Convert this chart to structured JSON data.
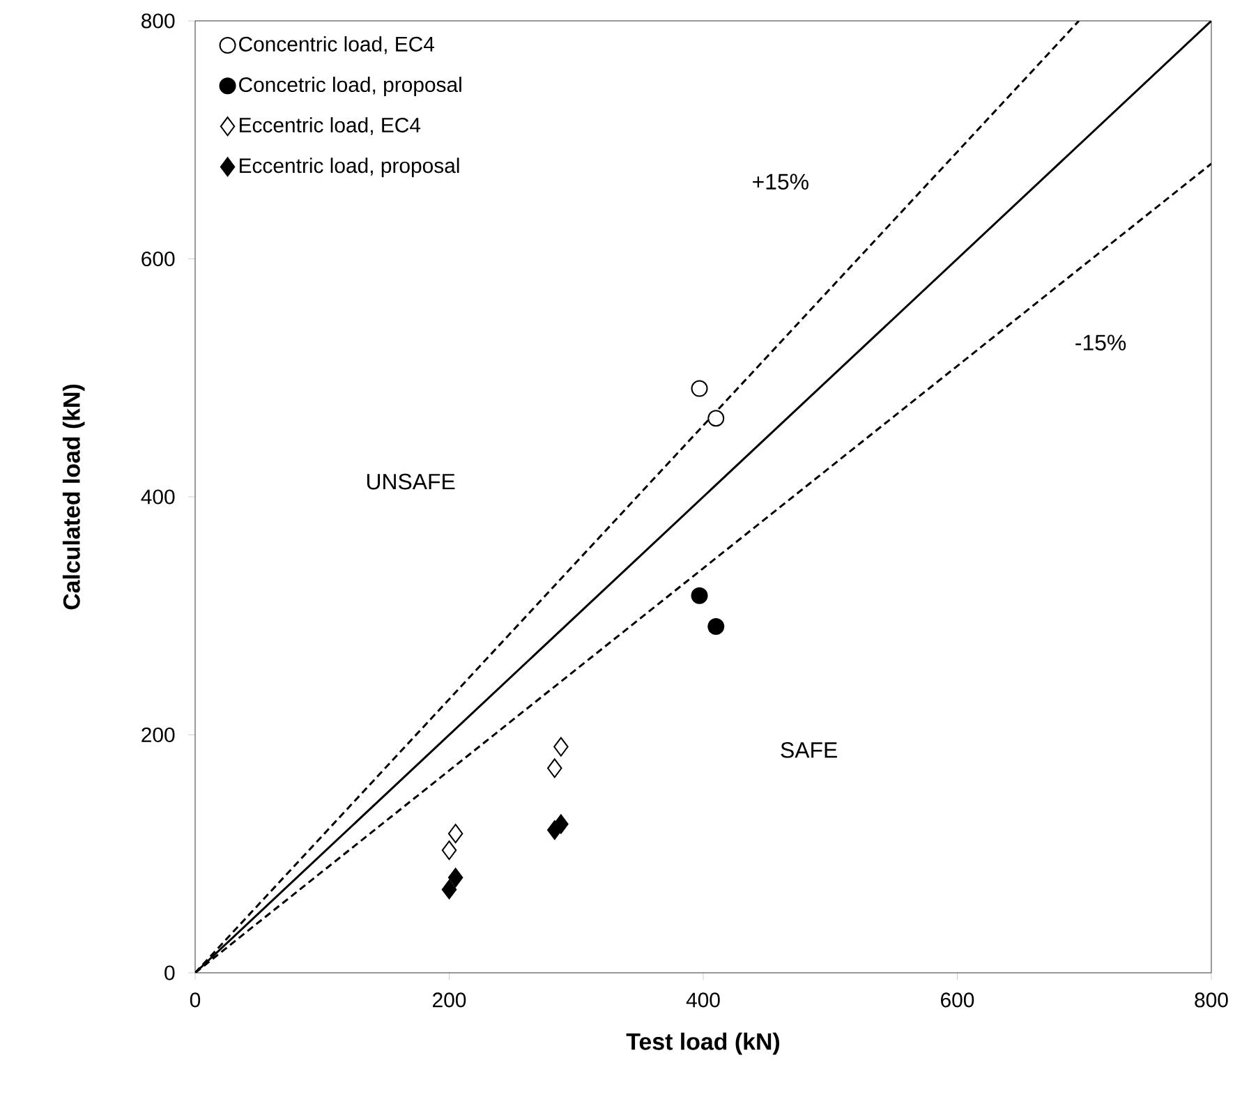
{
  "chart_data": {
    "type": "scatter",
    "xlabel": "Test load (kN)",
    "ylabel": "Calculated load (kN)",
    "xlim": [
      0,
      800
    ],
    "ylim": [
      0,
      800
    ],
    "xticks": [
      0,
      200,
      400,
      600,
      800
    ],
    "yticks": [
      0,
      200,
      400,
      600,
      800
    ],
    "grid": false,
    "legend": "top left",
    "series": [
      {
        "name": "Concentric load, EC4",
        "color": "#ffffff",
        "marker": "circle",
        "x": [
          397,
          410
        ],
        "values": [
          491,
          466
        ]
      },
      {
        "name": "Concetric load, proposal",
        "color": "#000000",
        "marker": "circle",
        "x": [
          397,
          410
        ],
        "values": [
          317,
          291
        ]
      },
      {
        "name": "Eccentric load, EC4",
        "color": "#ffffff",
        "marker": "diamond",
        "x": [
          200,
          205,
          283,
          288
        ],
        "values": [
          103,
          117,
          172,
          190
        ]
      },
      {
        "name": "Eccentric load, proposal",
        "color": "#000000",
        "marker": "diamond",
        "x": [
          200,
          205,
          283,
          288
        ],
        "values": [
          70,
          80,
          120,
          125
        ]
      },
      {
        "type": "line",
        "color": "#000000",
        "line_style": "solid",
        "marker": "none",
        "x": [
          0,
          800
        ],
        "values": [
          0,
          800
        ]
      },
      {
        "type": "line",
        "color": "#000000",
        "line_style": "dashed",
        "marker": "none",
        "x": [
          0,
          695.7
        ],
        "values": [
          0,
          800
        ]
      },
      {
        "type": "line",
        "color": "#000000",
        "line_style": "dashed",
        "marker": "none",
        "x": [
          0,
          800
        ],
        "values": [
          0,
          680
        ]
      }
    ],
    "annotations": [
      "+15%",
      "-15%",
      "UNSAFE",
      "SAFE"
    ]
  }
}
